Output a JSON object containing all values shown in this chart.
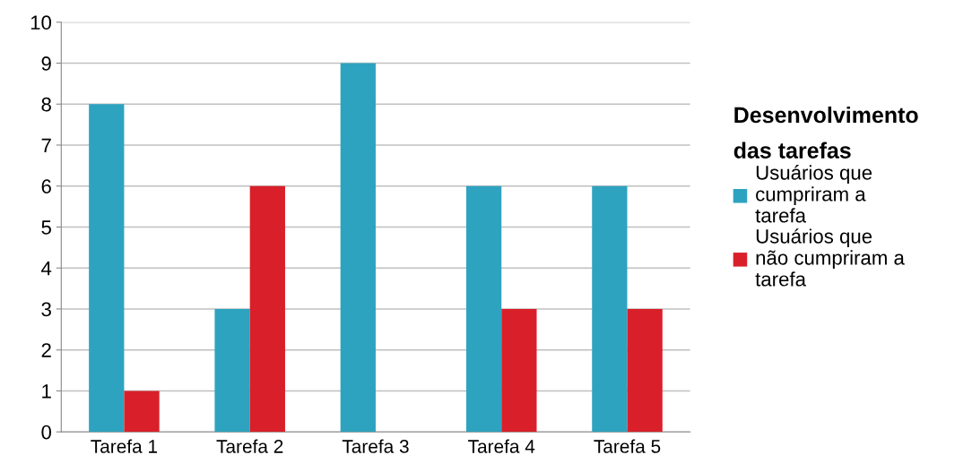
{
  "chart_data": {
    "type": "bar",
    "legend_title": "Desenvolvimento\ndas tarefas",
    "categories": [
      "Tarefa 1",
      "Tarefa 2",
      "Tarefa 3",
      "Tarefa 4",
      "Tarefa 5"
    ],
    "series": [
      {
        "name": "Usuários que\ncumpriram a\ntarefa",
        "color": "#2ea3c0",
        "values": [
          8,
          3,
          9,
          6,
          6
        ]
      },
      {
        "name": "Usuários que\nnão cumpriram a\ntarefa",
        "color": "#d9202a",
        "values": [
          1,
          6,
          0,
          3,
          3
        ]
      }
    ],
    "ylim": [
      0,
      10
    ],
    "yticks": [
      0,
      1,
      2,
      3,
      4,
      5,
      6,
      7,
      8,
      9,
      10
    ],
    "grid": "y",
    "legend": "right"
  }
}
